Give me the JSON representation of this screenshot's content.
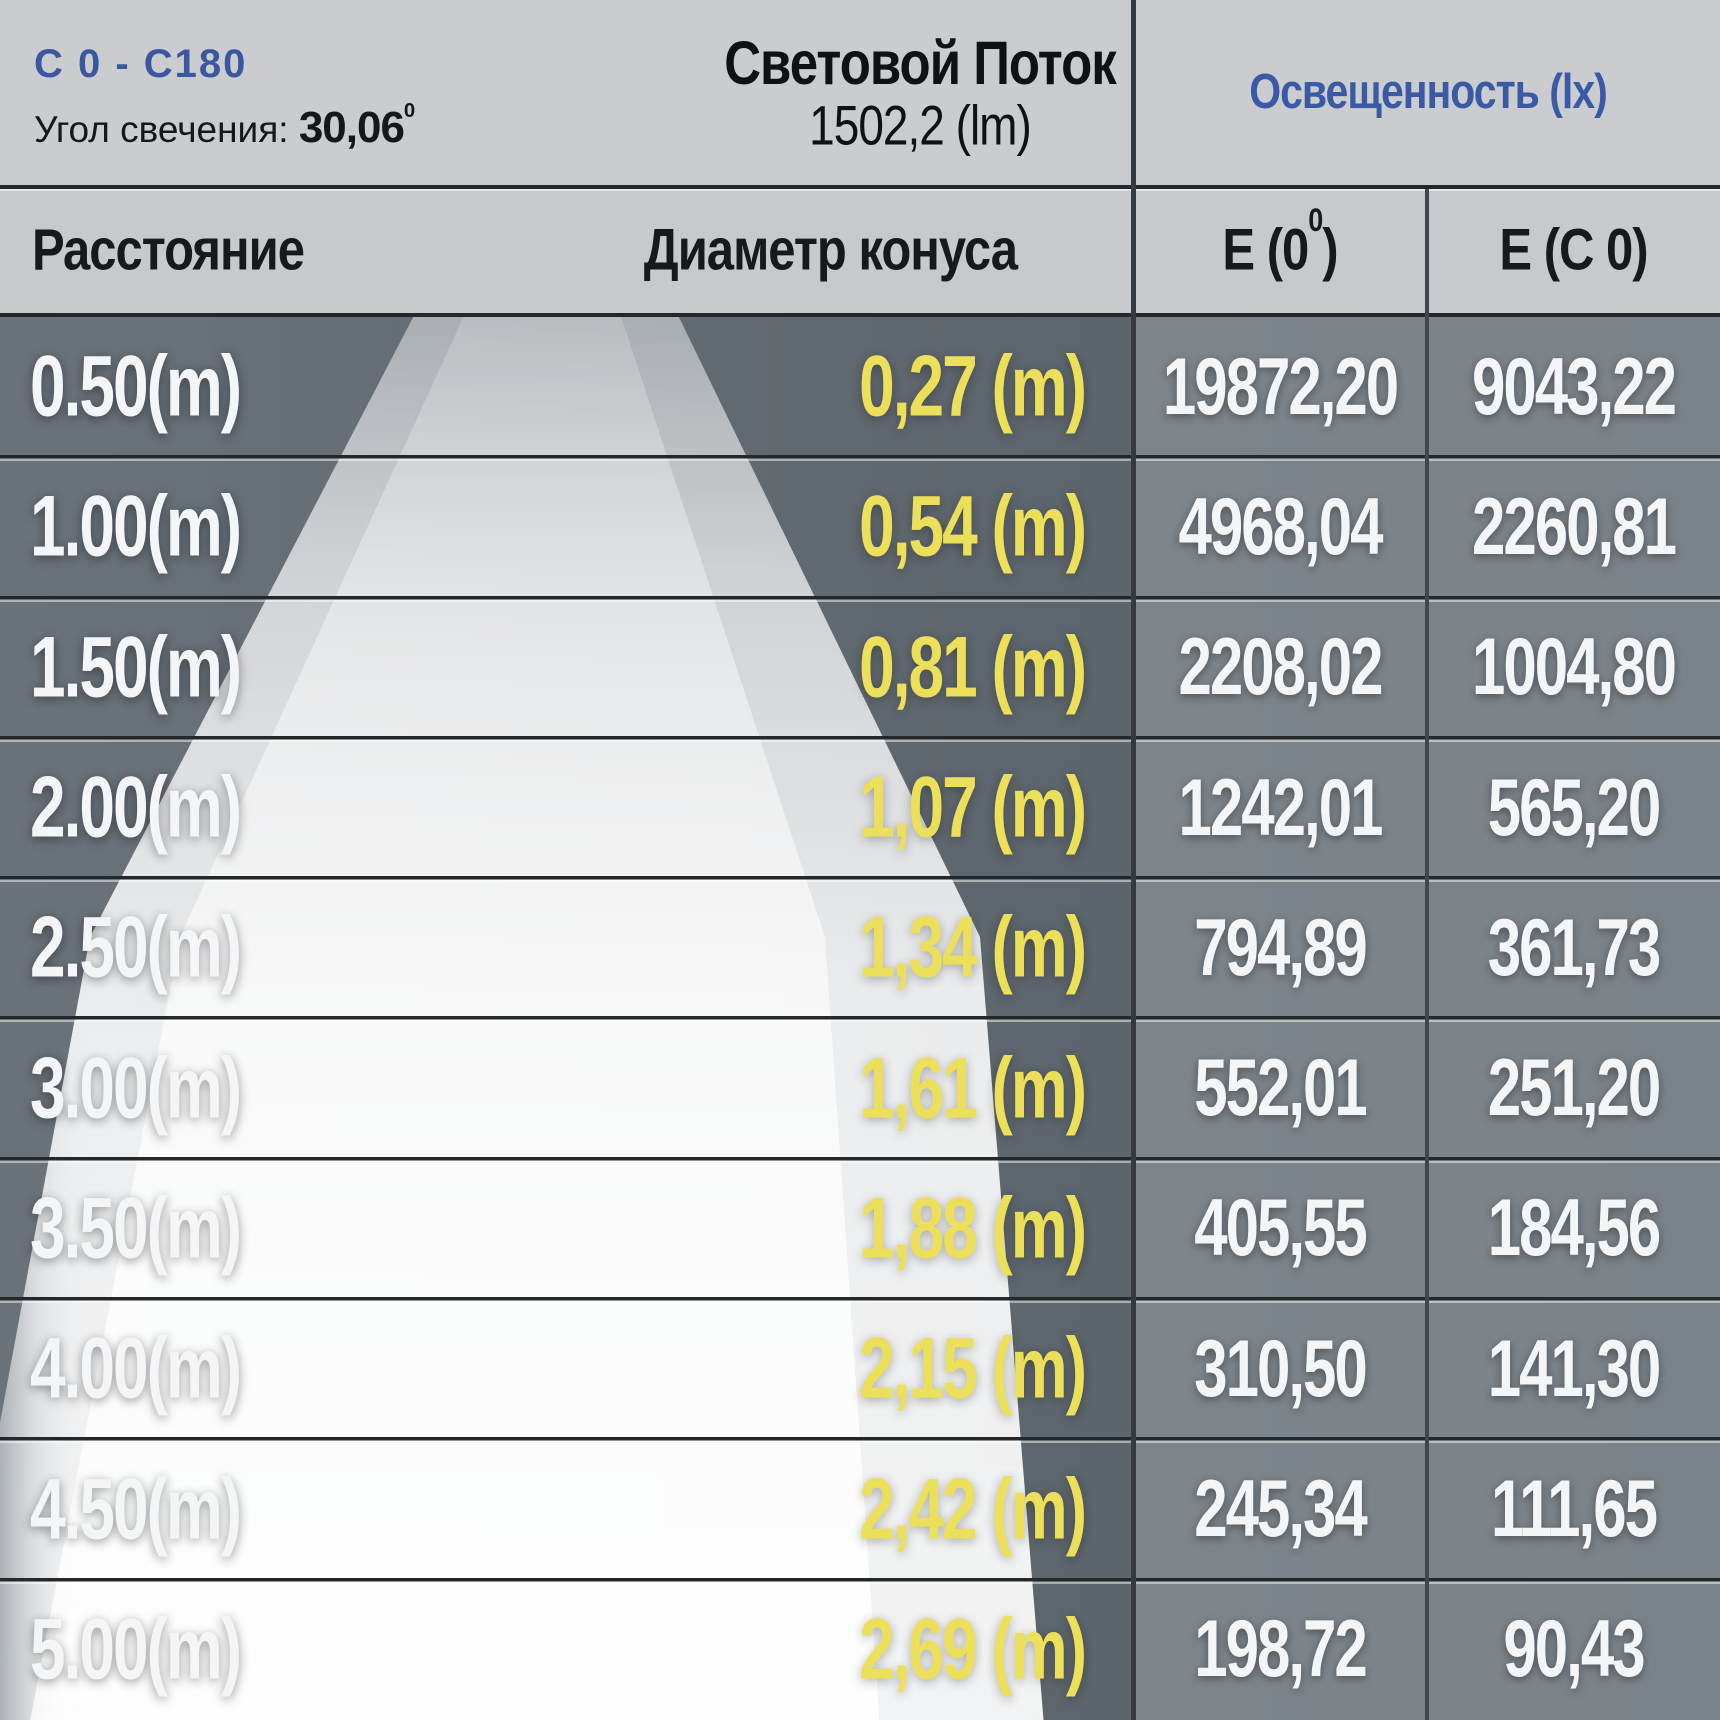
{
  "header": {
    "plane_label": "C 0 - C180",
    "beam_angle_label": "Угол свечения:",
    "beam_angle_value": "30,06",
    "beam_angle_sup": "0",
    "flux_title": "Световой Поток",
    "flux_value": "1502,2 (lm)",
    "illuminance_title": "Освещенность (lx)"
  },
  "columns": {
    "distance": "Расстояние",
    "cone_diameter": "Диаметр конуса",
    "e0_pre": "E (0",
    "e0_sup": "0",
    "e0_post": ")",
    "ec0": "E (C 0)"
  },
  "rows": [
    {
      "distance": "0.50(m)",
      "cone": "0,27 (m)",
      "e0": "19872,20",
      "ec0": "9043,22"
    },
    {
      "distance": "1.00(m)",
      "cone": "0,54 (m)",
      "e0": "4968,04",
      "ec0": "2260,81"
    },
    {
      "distance": "1.50(m)",
      "cone": "0,81 (m)",
      "e0": "2208,02",
      "ec0": "1004,80"
    },
    {
      "distance": "2.00(m)",
      "cone": "1,07 (m)",
      "e0": "1242,01",
      "ec0": "565,20"
    },
    {
      "distance": "2.50(m)",
      "cone": "1,34 (m)",
      "e0": "794,89",
      "ec0": "361,73"
    },
    {
      "distance": "3.00(m)",
      "cone": "1,61 (m)",
      "e0": "552,01",
      "ec0": "251,20"
    },
    {
      "distance": "3.50(m)",
      "cone": "1,88 (m)",
      "e0": "405,55",
      "ec0": "184,56"
    },
    {
      "distance": "4.00(m)",
      "cone": "2,15 (m)",
      "e0": "310,50",
      "ec0": "141,30"
    },
    {
      "distance": "4.50(m)",
      "cone": "2,42 (m)",
      "e0": "245,34",
      "ec0": "111,65"
    },
    {
      "distance": "5.00(m)",
      "cone": "2,69 (m)",
      "e0": "198,72",
      "ec0": "90,43"
    }
  ],
  "colors": {
    "accent_blue": "#3a57a0",
    "cone_yellow": "#ece05a",
    "header_gray": "#cacccf",
    "table_slate": "#646c74",
    "e_column_slate": "#7d858b",
    "text_white": "#f4f5f7",
    "line_dark": "#24272b"
  },
  "chart_data": {
    "type": "table",
    "title": "Световой Поток 1502,2 (lm)",
    "plane": "C 0 - C180",
    "beam_angle_deg": 30.06,
    "luminous_flux_lm": 1502.2,
    "illuminance_unit": "lx",
    "columns": [
      "Расстояние",
      "Диаметр конуса",
      "E (0°)",
      "E (C 0)"
    ],
    "rows": [
      [
        "0.50(m)",
        "0,27 (m)",
        "19872,20",
        "9043,22"
      ],
      [
        "1.00(m)",
        "0,54 (m)",
        "4968,04",
        "2260,81"
      ],
      [
        "1.50(m)",
        "0,81 (m)",
        "2208,02",
        "1004,80"
      ],
      [
        "2.00(m)",
        "1,07 (m)",
        "1242,01",
        "565,20"
      ],
      [
        "2.50(m)",
        "1,34 (m)",
        "794,89",
        "361,73"
      ],
      [
        "3.00(m)",
        "1,61 (m)",
        "552,01",
        "251,20"
      ],
      [
        "3.50(m)",
        "1,88 (m)",
        "405,55",
        "184,56"
      ],
      [
        "4.00(m)",
        "2,15 (m)",
        "310,50",
        "141,30"
      ],
      [
        "4.50(m)",
        "2,42 (m)",
        "245,34",
        "111,65"
      ],
      [
        "5.00(m)",
        "2,69 (m)",
        "198,72",
        "90,43"
      ]
    ]
  }
}
